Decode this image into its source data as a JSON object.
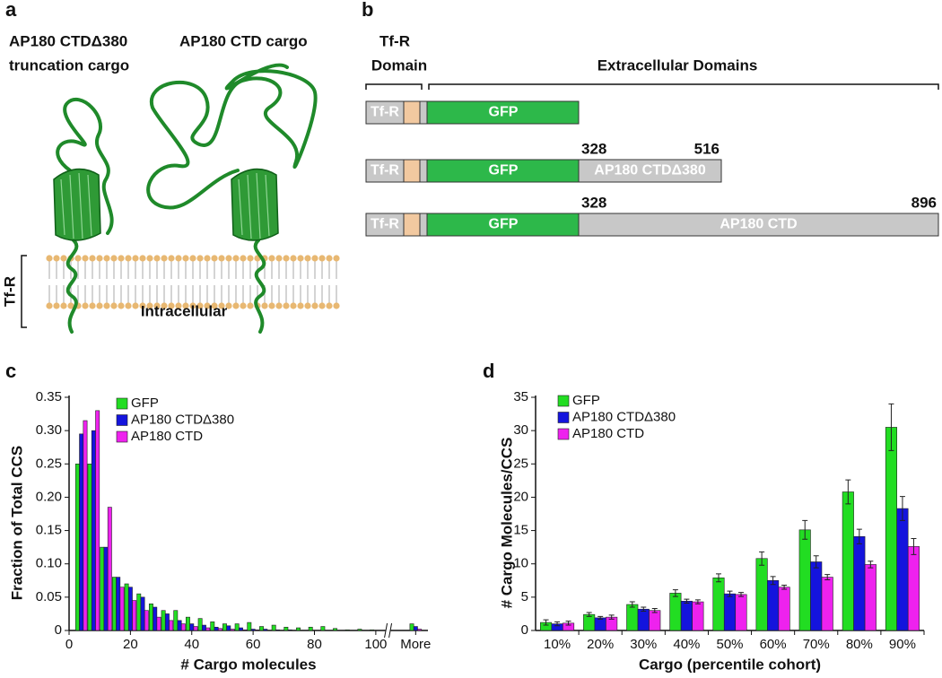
{
  "panel_a": {
    "label": "a",
    "cargo_left": [
      "AP180 CTDΔ380",
      "truncation cargo"
    ],
    "cargo_right": "AP180 CTD cargo",
    "membrane_label": "Tf-R",
    "intracellular": "Intracellular"
  },
  "panel_b": {
    "label": "b",
    "tfr_domain": [
      "Tf-R",
      "Domain"
    ],
    "extracellular": "Extracellular Domains",
    "constructs": [
      {
        "tfr": "Tf-R",
        "gfp": "GFP"
      },
      {
        "tfr": "Tf-R",
        "gfp": "GFP",
        "start": 328,
        "end": 516,
        "tail": "AP180 CTDΔ380"
      },
      {
        "tfr": "Tf-R",
        "gfp": "GFP",
        "start": 328,
        "end": 896,
        "tail": "AP180 CTD"
      }
    ]
  },
  "chart_data": [
    {
      "type": "bar",
      "panel_label": "c",
      "xlabel": "# Cargo molecules",
      "ylabel": "Fraction of Total CCS",
      "x": [
        4,
        8,
        12,
        16,
        20,
        24,
        28,
        32,
        36,
        40,
        44,
        48,
        52,
        56,
        60,
        64,
        68,
        72,
        76,
        80,
        84,
        88,
        92,
        96,
        100,
        113
      ],
      "xlim": [
        0,
        117
      ],
      "xticks": [
        0,
        20,
        40,
        60,
        80,
        100,
        {
          "value": 113,
          "label": "More"
        }
      ],
      "ylim": [
        0,
        0.35
      ],
      "yticks": [
        0,
        0.05,
        {
          "value": 0.1,
          "label": "0.10"
        },
        0.15,
        {
          "value": 0.2,
          "label": "0.20"
        },
        0.25,
        {
          "value": 0.3,
          "label": "0.30"
        },
        0.35
      ],
      "series": [
        {
          "name": "GFP",
          "color": "#22dd22",
          "values": [
            0.25,
            0.25,
            0.125,
            0.08,
            0.07,
            0.055,
            0.04,
            0.03,
            0.03,
            0.02,
            0.018,
            0.013,
            0.01,
            0.01,
            0.012,
            0.006,
            0.008,
            0.005,
            0.004,
            0.005,
            0.006,
            0.003,
            0.001,
            0.002,
            0.001,
            0.01
          ]
        },
        {
          "name": "AP180 CTDΔ380",
          "color": "#1414dd",
          "values": [
            0.295,
            0.3,
            0.125,
            0.08,
            0.065,
            0.05,
            0.035,
            0.025,
            0.015,
            0.01,
            0.008,
            0.005,
            0.007,
            0.004,
            0.002,
            0.002,
            0.001,
            0.001,
            0,
            0,
            0,
            0,
            0,
            0,
            0,
            0.006
          ]
        },
        {
          "name": "AP180 CTD",
          "color": "#ee22ee",
          "values": [
            0.315,
            0.33,
            0.185,
            0.065,
            0.045,
            0.03,
            0.02,
            0.015,
            0.01,
            0.006,
            0.004,
            0.003,
            0.002,
            0.001,
            0.001,
            0,
            0,
            0,
            0,
            0,
            0,
            0,
            0,
            0,
            0,
            0.002
          ]
        }
      ]
    },
    {
      "type": "bar",
      "panel_label": "d",
      "xlabel": "Cargo (percentile cohort)",
      "ylabel": "# Cargo Molecules/CCS",
      "categories": [
        "10%",
        "20%",
        "30%",
        "40%",
        "50%",
        "60%",
        "70%",
        "80%",
        "90%"
      ],
      "ylim": [
        0,
        35
      ],
      "yticks": [
        0,
        5,
        10,
        15,
        20,
        25,
        30,
        35
      ],
      "series": [
        {
          "name": "GFP",
          "color": "#22dd22",
          "values": [
            1.2,
            2.4,
            3.9,
            5.6,
            7.9,
            10.8,
            15.1,
            20.8,
            30.5
          ],
          "errors": [
            0.4,
            0.3,
            0.4,
            0.5,
            0.6,
            1,
            1.4,
            1.8,
            3.5
          ]
        },
        {
          "name": "AP180 CTDΔ380",
          "color": "#1414dd",
          "values": [
            1.0,
            1.9,
            3.2,
            4.4,
            5.5,
            7.5,
            10.3,
            14.1,
            18.3
          ],
          "errors": [
            0.3,
            0.2,
            0.3,
            0.3,
            0.4,
            0.6,
            0.9,
            1.1,
            1.8
          ]
        },
        {
          "name": "AP180 CTD",
          "color": "#ee22ee",
          "values": [
            1.1,
            2.0,
            3.0,
            4.3,
            5.4,
            6.5,
            8.0,
            9.9,
            12.6
          ],
          "errors": [
            0.3,
            0.3,
            0.3,
            0.3,
            0.3,
            0.3,
            0.4,
            0.5,
            1.2
          ]
        }
      ]
    }
  ]
}
